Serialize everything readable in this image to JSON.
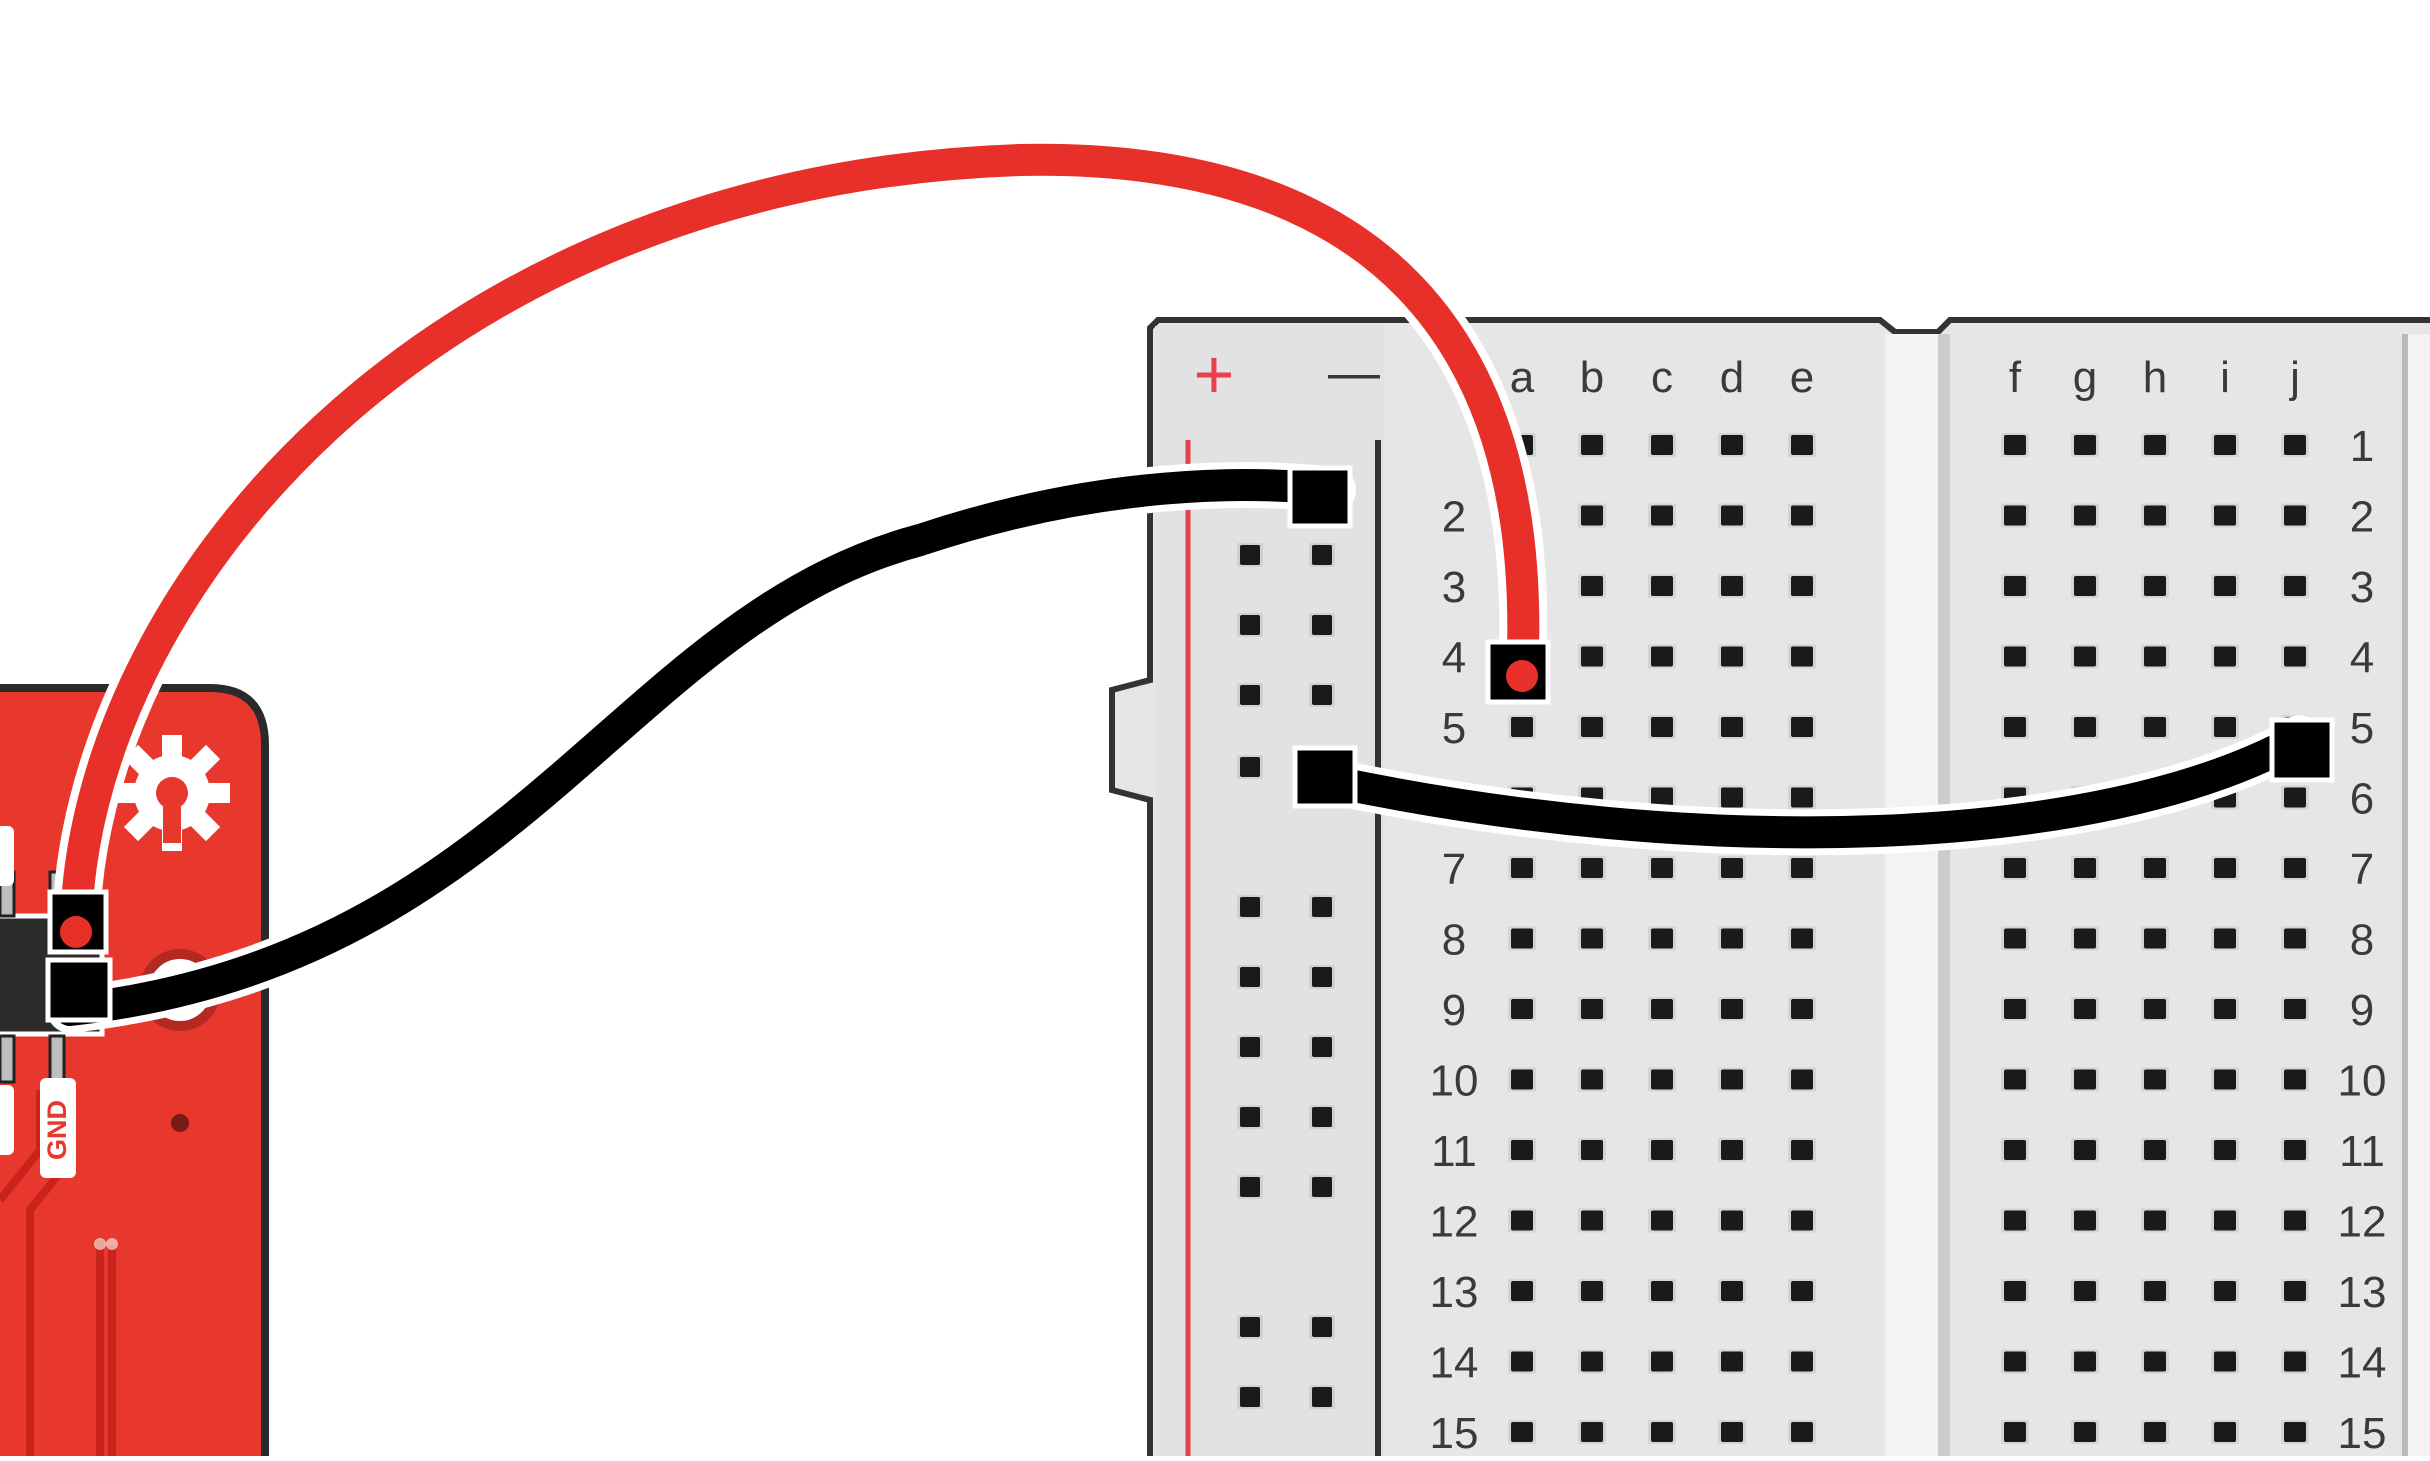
{
  "board": {
    "pin_labels": [
      "GND"
    ],
    "color": "#e8382e",
    "gear_icon": "gear-icon"
  },
  "breadboard": {
    "rail_left_plus": "+",
    "rail_left_minus": "—",
    "columns_left": [
      "a",
      "b",
      "c",
      "d",
      "e"
    ],
    "columns_right": [
      "f",
      "g",
      "h",
      "i",
      "j"
    ],
    "rows": [
      "1",
      "2",
      "3",
      "4",
      "5",
      "6",
      "7",
      "8",
      "9",
      "10",
      "11",
      "12",
      "13",
      "14",
      "15"
    ],
    "body_color": "#e6e6e6",
    "hole_color": "#1a1a1a",
    "rail_plus_color": "#e8414b"
  },
  "wires": [
    {
      "name": "red-wire",
      "color": "#e8302a"
    },
    {
      "name": "black-wire-gnd",
      "color": "#000000"
    },
    {
      "name": "black-wire-bridge",
      "color": "#000000"
    }
  ]
}
